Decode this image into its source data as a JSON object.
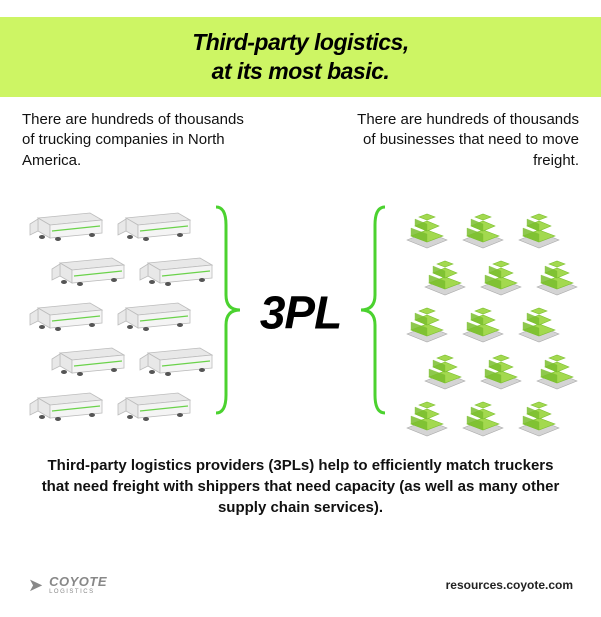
{
  "type": "infographic",
  "colors": {
    "header_band": "#cdf564",
    "accent": "#4bd22f",
    "truck_body": "#e8e8e8",
    "truck_outline": "#bcbcbc",
    "truck_stripe": "#6bd24b",
    "pallet_box": "#a3d94f",
    "pallet_box_dark": "#7bbf2f",
    "pallet_base": "#d4d4d4",
    "text": "#111111",
    "logo_grey": "#888888"
  },
  "header": {
    "title_line1": "Third-party logistics,",
    "title_line2": "at its most basic.",
    "fontsize": 23
  },
  "descriptions": {
    "left": "There are hundreds of thousands of trucking companies in North America.",
    "right": "There are hundreds of thousands of businesses that need to move freight."
  },
  "diagram": {
    "center_label": "3PL",
    "center_fontsize": 46,
    "trucks": {
      "count": 10,
      "rows": [
        2,
        2,
        2,
        2,
        2
      ],
      "stagger_rows": [
        1,
        3
      ]
    },
    "pallets": {
      "count": 15,
      "rows": [
        3,
        3,
        3,
        3,
        3
      ],
      "stagger_rows": [
        1,
        3
      ]
    },
    "bracket_color": "#4bd22f",
    "bracket_stroke_width": 3
  },
  "bottom_text": "Third-party logistics providers (3PLs) help to efficiently match truckers that need freight with shippers that need capacity (as well as many other supply chain services).",
  "footer": {
    "logo_name": "COYOTE",
    "logo_sub": "LOGISTICS",
    "url": "resources.coyote.com"
  }
}
